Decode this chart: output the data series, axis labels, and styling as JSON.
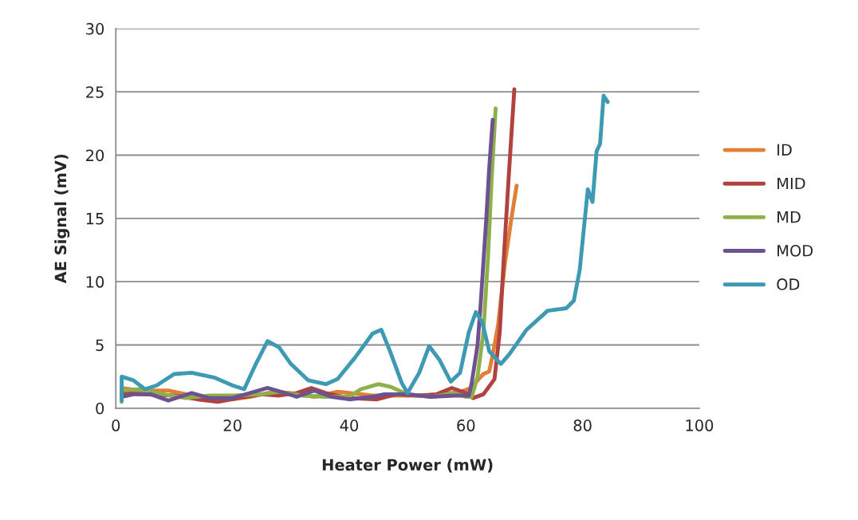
{
  "chart_data": {
    "type": "line",
    "xlabel": "Heater Power (mW)",
    "ylabel": "AE Signal (mV)",
    "xlim": [
      0,
      100
    ],
    "xticks": [
      0,
      20,
      40,
      60,
      80,
      100
    ],
    "ylim": [
      0,
      30
    ],
    "yticks": [
      0,
      5,
      10,
      15,
      20,
      25,
      30
    ],
    "grid": "y",
    "legend": "right",
    "marker": "none",
    "line_style": "solid",
    "series": [
      {
        "name": "ID",
        "color": "#e07f35",
        "x": [
          1,
          4,
          9,
          13,
          17,
          20,
          23,
          26,
          30,
          34,
          38,
          40,
          44,
          48,
          52,
          56,
          59,
          61,
          62,
          63,
          64,
          64.5,
          65.5,
          66.7,
          67.8,
          68.7
        ],
        "values": [
          1.6,
          1.4,
          1.4,
          1.0,
          0.8,
          0.7,
          0.9,
          1.2,
          1.2,
          0.9,
          1.3,
          1.2,
          1.0,
          1.0,
          1.0,
          1.1,
          1.3,
          1.6,
          2.2,
          2.7,
          2.9,
          4,
          6.5,
          11.5,
          15,
          17.6
        ]
      },
      {
        "name": "MID",
        "color": "#b04240",
        "x": [
          1,
          5,
          10,
          14,
          17.5,
          21,
          25,
          28,
          31,
          33.5,
          36,
          40,
          44.8,
          48,
          52,
          55,
          57.6,
          60,
          61.2,
          63,
          64.9,
          65.8,
          66.5,
          67.3,
          68.3
        ],
        "values": [
          1.2,
          1.1,
          1.0,
          0.7,
          0.5,
          0.8,
          1.1,
          1.0,
          1.2,
          1.6,
          1.2,
          0.8,
          0.7,
          1.1,
          1.0,
          1.1,
          1.6,
          1.2,
          0.8,
          1.1,
          2.3,
          6,
          11.9,
          18,
          25.2
        ]
      },
      {
        "name": "MD",
        "color": "#8eb04a",
        "x": [
          1,
          1,
          4,
          7,
          12,
          16,
          20,
          25,
          28,
          32,
          36,
          40,
          42,
          45,
          47,
          50,
          54,
          58,
          60,
          61,
          62,
          63,
          63.8,
          64.4,
          65.1
        ],
        "values": [
          0.5,
          1.4,
          1.5,
          1.2,
          0.8,
          1.0,
          1.0,
          1.1,
          1.3,
          1.0,
          0.9,
          0.9,
          1.5,
          1.9,
          1.7,
          1.1,
          0.9,
          1.2,
          0.9,
          0.9,
          2.5,
          6,
          12,
          18,
          23.7
        ]
      },
      {
        "name": "MOD",
        "color": "#6e5190",
        "x": [
          1,
          3,
          6,
          9,
          13,
          16,
          20,
          23,
          26,
          29,
          31,
          34,
          37,
          40,
          44,
          46,
          50,
          54,
          58,
          60.5,
          61,
          61.5,
          62,
          62.5,
          63.5,
          64,
          64.6
        ],
        "values": [
          0.9,
          1.1,
          1.1,
          0.6,
          1.2,
          0.8,
          0.8,
          1.2,
          1.6,
          1.2,
          0.9,
          1.4,
          0.9,
          0.7,
          0.9,
          1.1,
          1.1,
          0.9,
          1.0,
          1.0,
          2,
          3.5,
          5,
          8,
          15,
          19,
          22.8
        ]
      },
      {
        "name": "OD",
        "color": "#3e9ab3",
        "x": [
          1,
          1,
          3,
          5,
          7,
          10,
          13,
          17,
          20,
          22,
          24,
          26,
          28,
          30,
          33,
          36,
          38,
          41,
          44,
          45.5,
          47,
          49,
          50,
          52,
          53.7,
          55.5,
          57.4,
          59,
          60.5,
          61.7,
          62.8,
          64,
          66,
          67.5,
          70.4,
          74,
          77.2,
          78.5,
          79.5,
          80.9,
          81.7,
          82.4,
          83,
          83.6,
          84.3
        ],
        "values": [
          0.6,
          2.5,
          2.2,
          1.5,
          1.8,
          2.7,
          2.8,
          2.4,
          1.8,
          1.5,
          3.5,
          5.3,
          4.8,
          3.5,
          2.2,
          1.9,
          2.3,
          4.0,
          5.9,
          6.2,
          4.5,
          2.0,
          1.2,
          2.8,
          4.9,
          3.8,
          2.1,
          2.8,
          6,
          7.6,
          6.8,
          4.5,
          3.5,
          4.3,
          6.2,
          7.7,
          7.9,
          8.5,
          10.9,
          17.3,
          16.3,
          20.3,
          20.9,
          24.7,
          24.2
        ]
      }
    ]
  }
}
